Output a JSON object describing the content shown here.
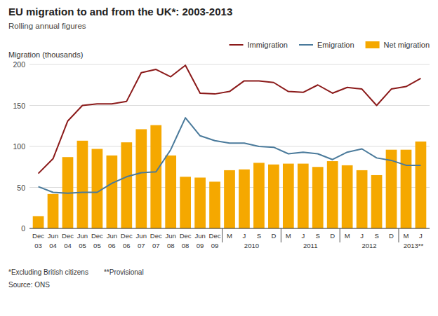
{
  "chart_data": {
    "type": "bar",
    "title": "EU migration to and from the UK*: 2003-2013",
    "subtitle": "Rolling annual figures",
    "ylabel": "Migration (thousands)",
    "categories": [
      "Dec",
      "Jun",
      "Dec",
      "Jun",
      "Dec",
      "Jun",
      "Dec",
      "Jun",
      "Dec",
      "Jun",
      "Dec",
      "Jun",
      "Dec",
      "M",
      "J",
      "S",
      "D",
      "M",
      "J",
      "S",
      "D",
      "M",
      "J",
      "S",
      "D",
      "M",
      "J"
    ],
    "annotations": [
      {
        "text": "03",
        "from": 0,
        "to": 0
      },
      {
        "text": "04",
        "from": 1,
        "to": 1
      },
      {
        "text": "04",
        "from": 2,
        "to": 2
      },
      {
        "text": "05",
        "from": 3,
        "to": 3
      },
      {
        "text": "05",
        "from": 4,
        "to": 4
      },
      {
        "text": "06",
        "from": 5,
        "to": 5
      },
      {
        "text": "06",
        "from": 6,
        "to": 6
      },
      {
        "text": "07",
        "from": 7,
        "to": 7
      },
      {
        "text": "07",
        "from": 8,
        "to": 8
      },
      {
        "text": "08",
        "from": 9,
        "to": 9
      },
      {
        "text": "08",
        "from": 10,
        "to": 10
      },
      {
        "text": "09",
        "from": 11,
        "to": 11
      },
      {
        "text": "09",
        "from": 12,
        "to": 12
      },
      {
        "text": "2010",
        "from": 13,
        "to": 16
      },
      {
        "text": "2011",
        "from": 17,
        "to": 20
      },
      {
        "text": "2012",
        "from": 21,
        "to": 24
      },
      {
        "text": "2013**",
        "from": 25,
        "to": 26
      }
    ],
    "notes": [
      "*Excluding British citizens",
      "**Provisional",
      "Source: ONS"
    ],
    "series": [
      {
        "name": "Immigration",
        "type": "line",
        "color": "#8B1A1A",
        "values": [
          67,
          85,
          131,
          150,
          152,
          152,
          155,
          190,
          194,
          185,
          199,
          165,
          164,
          167,
          180,
          180,
          178,
          167,
          166,
          175,
          165,
          172,
          170,
          150,
          170,
          173,
          183
        ]
      },
      {
        "name": "Emigration",
        "type": "line",
        "color": "#4A7A9B",
        "values": [
          51,
          44,
          43,
          44,
          44,
          55,
          63,
          68,
          69,
          96,
          135,
          113,
          107,
          104,
          104,
          100,
          99,
          91,
          93,
          91,
          84,
          93,
          97,
          86,
          83,
          77,
          77
        ]
      },
      {
        "name": "Net migration",
        "type": "bar",
        "color": "#F5A800",
        "values": [
          15,
          42,
          87,
          107,
          97,
          89,
          105,
          121,
          126,
          89,
          63,
          62,
          57,
          71,
          72,
          80,
          78,
          79,
          79,
          75,
          82,
          77,
          71,
          65,
          96,
          96,
          106
        ]
      }
    ],
    "ylim": [
      0,
      200
    ],
    "yticks": [
      0,
      50,
      100,
      150,
      200
    ],
    "grid": true,
    "legend": "upper right"
  }
}
